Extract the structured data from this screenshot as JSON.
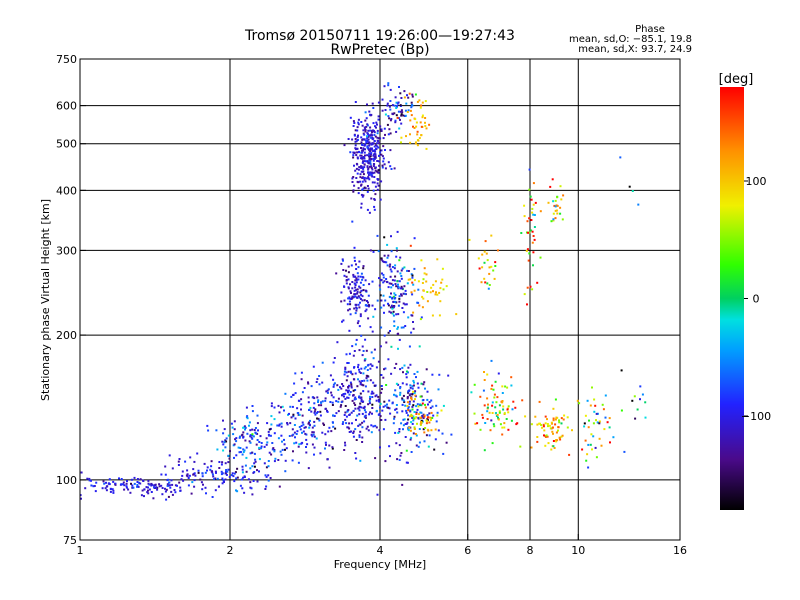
{
  "chart_data": {
    "type": "scatter",
    "title": "Tromsø 20150711 19:26:00—19:27:43",
    "subtitle": "RwPretec (Bp)",
    "xlabel": "Frequency [MHz]",
    "ylabel": "Stationary phase Virtual Height [km]",
    "x_scale": "log",
    "y_scale": "log",
    "xlim": [
      1,
      16
    ],
    "ylim": [
      75,
      750
    ],
    "x_ticks": [
      1,
      2,
      4,
      6,
      8,
      10,
      16
    ],
    "x_tick_labels": [
      "1",
      "2",
      "4",
      "6",
      "8",
      "10",
      "16"
    ],
    "y_ticks": [
      75,
      100,
      200,
      300,
      400,
      500,
      600,
      750
    ],
    "y_tick_labels": [
      "75",
      "100",
      "200",
      "300",
      "400",
      "500",
      "600",
      "750"
    ],
    "grid": true,
    "grid_x": [
      2,
      4,
      6,
      8,
      10
    ],
    "grid_y": [
      100,
      200,
      300,
      400,
      500,
      600
    ],
    "stats": {
      "heading": "Phase",
      "line_o": "mean, sd,O: −85.1, 19.8",
      "line_x": "mean, sd,X:  93.7, 24.9"
    },
    "colorbar": {
      "label": "[deg]",
      "range": [
        -180,
        180
      ],
      "ticks": [
        100,
        0,
        -100
      ],
      "tick_labels": [
        "100",
        "0",
        "−100"
      ]
    },
    "clusters": [
      {
        "x": 1.3,
        "y": 97,
        "sx": 0.16,
        "sy": 0.025,
        "n": 140,
        "phase": -105,
        "psd": 20
      },
      {
        "x": 1.9,
        "y": 102,
        "sx": 0.12,
        "sy": 0.04,
        "n": 110,
        "phase": -100,
        "psd": 25
      },
      {
        "x": 2.2,
        "y": 118,
        "sx": 0.09,
        "sy": 0.08,
        "n": 160,
        "phase": -85,
        "psd": 35
      },
      {
        "x": 2.9,
        "y": 135,
        "sx": 0.09,
        "sy": 0.1,
        "n": 180,
        "phase": -95,
        "psd": 30
      },
      {
        "x": 3.6,
        "y": 150,
        "sx": 0.07,
        "sy": 0.13,
        "n": 260,
        "phase": -100,
        "psd": 25
      },
      {
        "x": 4.6,
        "y": 140,
        "sx": 0.07,
        "sy": 0.12,
        "n": 200,
        "phase": -90,
        "psd": 40
      },
      {
        "x": 3.8,
        "y": 475,
        "sx": 0.04,
        "sy": 0.1,
        "n": 360,
        "phase": -110,
        "psd": 18
      },
      {
        "x": 4.3,
        "y": 590,
        "sx": 0.04,
        "sy": 0.05,
        "n": 70,
        "phase": -95,
        "psd": 35
      },
      {
        "x": 4.7,
        "y": 540,
        "sx": 0.04,
        "sy": 0.07,
        "n": 45,
        "phase": 110,
        "psd": 25
      },
      {
        "x": 3.6,
        "y": 245,
        "sx": 0.04,
        "sy": 0.09,
        "n": 140,
        "phase": -105,
        "psd": 20
      },
      {
        "x": 4.3,
        "y": 250,
        "sx": 0.045,
        "sy": 0.12,
        "n": 160,
        "phase": -90,
        "psd": 40
      },
      {
        "x": 5.0,
        "y": 250,
        "sx": 0.045,
        "sy": 0.09,
        "n": 45,
        "phase": 110,
        "psd": 25
      },
      {
        "x": 4.9,
        "y": 135,
        "sx": 0.035,
        "sy": 0.05,
        "n": 55,
        "phase": 100,
        "psd": 30
      },
      {
        "x": 6.8,
        "y": 140,
        "sx": 0.05,
        "sy": 0.09,
        "n": 85,
        "phase": 70,
        "psd": 80
      },
      {
        "x": 6.6,
        "y": 280,
        "sx": 0.03,
        "sy": 0.06,
        "n": 25,
        "phase": 120,
        "psd": 60
      },
      {
        "x": 8.0,
        "y": 330,
        "sx": 0.02,
        "sy": 0.13,
        "n": 40,
        "phase": 80,
        "psd": 100
      },
      {
        "x": 8.8,
        "y": 128,
        "sx": 0.04,
        "sy": 0.05,
        "n": 70,
        "phase": 100,
        "psd": 40
      },
      {
        "x": 9.0,
        "y": 370,
        "sx": 0.02,
        "sy": 0.05,
        "n": 25,
        "phase": 100,
        "psd": 70
      },
      {
        "x": 10.8,
        "y": 130,
        "sx": 0.035,
        "sy": 0.08,
        "n": 45,
        "phase": 20,
        "psd": 110
      },
      {
        "x": 13.0,
        "y": 140,
        "sx": 0.05,
        "sy": 0.12,
        "n": 12,
        "phase": -60,
        "psd": 90
      },
      {
        "x": 13.0,
        "y": 400,
        "sx": 0.03,
        "sy": 0.08,
        "n": 4,
        "phase": -60,
        "psd": 60
      }
    ]
  }
}
